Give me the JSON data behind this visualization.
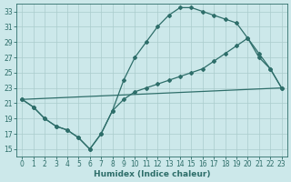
{
  "background_color": "#cce8ea",
  "grid_color": "#aacccc",
  "line_color": "#2e6e6a",
  "xlabel": "Humidex (Indice chaleur)",
  "xlim": [
    -0.5,
    23.5
  ],
  "ylim": [
    14,
    34
  ],
  "xticks": [
    0,
    1,
    2,
    3,
    4,
    5,
    6,
    7,
    8,
    9,
    10,
    11,
    12,
    13,
    14,
    15,
    16,
    17,
    18,
    19,
    20,
    21,
    22,
    23
  ],
  "yticks": [
    15,
    17,
    19,
    21,
    23,
    25,
    27,
    29,
    31,
    33
  ],
  "line1_x": [
    0,
    1,
    2,
    3,
    4,
    5,
    6,
    7,
    8,
    9,
    10,
    11,
    12,
    13,
    14,
    15,
    16,
    17,
    18,
    19,
    20,
    21,
    22,
    23
  ],
  "line1_y": [
    21.5,
    20.5,
    19.0,
    18.0,
    17.5,
    16.5,
    15.0,
    17.0,
    20.0,
    24.0,
    27.0,
    29.0,
    31.0,
    32.5,
    33.5,
    33.5,
    33.0,
    32.5,
    32.0,
    31.5,
    29.5,
    27.5,
    25.5,
    23.0
  ],
  "line2_x": [
    0,
    1,
    2,
    3,
    4,
    5,
    6,
    7,
    8,
    9,
    10,
    11,
    12,
    13,
    14,
    15,
    16,
    17,
    18,
    19,
    20,
    21,
    22,
    23
  ],
  "line2_y": [
    21.5,
    20.5,
    19.0,
    18.0,
    17.5,
    16.5,
    15.0,
    17.0,
    20.0,
    21.5,
    22.5,
    23.0,
    23.5,
    24.0,
    24.5,
    25.0,
    25.5,
    26.5,
    27.5,
    28.5,
    29.5,
    27.0,
    25.5,
    23.0
  ],
  "line3_x": [
    0,
    23
  ],
  "line3_y": [
    21.5,
    23.0
  ],
  "marker": "D",
  "markersize": 2.0,
  "linewidth": 0.9,
  "tick_fontsize": 5.5,
  "xlabel_fontsize": 6.5
}
